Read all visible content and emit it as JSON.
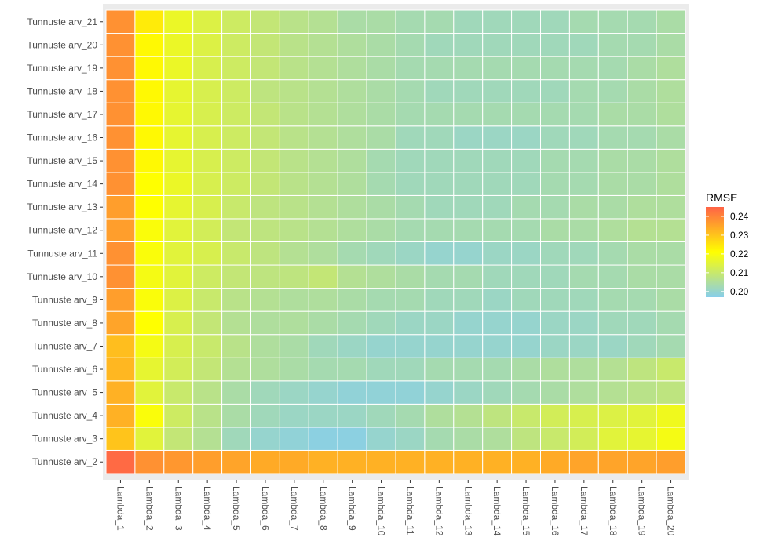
{
  "chart_data": {
    "type": "heatmap",
    "x_categories": [
      "Lambda_1",
      "Lambda_2",
      "Lambda_3",
      "Lambda_4",
      "Lambda_5",
      "Lambda_6",
      "Lambda_7",
      "Lambda_8",
      "Lambda_9",
      "Lambda_10",
      "Lambda_11",
      "Lambda_12",
      "Lambda_13",
      "Lambda_14",
      "Lambda_15",
      "Lambda_16",
      "Lambda_17",
      "Lambda_18",
      "Lambda_19",
      "Lambda_20"
    ],
    "y_categories": [
      "Tunnuste arv_2",
      "Tunnuste arv_3",
      "Tunnuste arv_4",
      "Tunnuste arv_5",
      "Tunnuste arv_6",
      "Tunnuste arv_7",
      "Tunnuste arv_8",
      "Tunnuste arv_9",
      "Tunnuste arv_10",
      "Tunnuste arv_11",
      "Tunnuste arv_12",
      "Tunnuste arv_13",
      "Tunnuste arv_14",
      "Tunnuste arv_15",
      "Tunnuste arv_16",
      "Tunnuste arv_17",
      "Tunnuste arv_18",
      "Tunnuste arv_19",
      "Tunnuste arv_20",
      "Tunnuste arv_21"
    ],
    "values": [
      [
        0.244,
        0.238,
        0.237,
        0.236,
        0.235,
        0.234,
        0.234,
        0.233,
        0.233,
        0.233,
        0.233,
        0.233,
        0.233,
        0.233,
        0.233,
        0.234,
        0.235,
        0.235,
        0.235,
        0.236
      ],
      [
        0.23,
        0.215,
        0.209,
        0.206,
        0.202,
        0.2,
        0.199,
        0.198,
        0.198,
        0.2,
        0.201,
        0.203,
        0.204,
        0.205,
        0.208,
        0.21,
        0.212,
        0.215,
        0.216,
        0.219
      ],
      [
        0.233,
        0.22,
        0.211,
        0.207,
        0.204,
        0.202,
        0.201,
        0.201,
        0.201,
        0.202,
        0.203,
        0.205,
        0.206,
        0.208,
        0.21,
        0.212,
        0.213,
        0.214,
        0.215,
        0.218
      ],
      [
        0.233,
        0.215,
        0.21,
        0.207,
        0.204,
        0.202,
        0.201,
        0.2,
        0.199,
        0.199,
        0.199,
        0.2,
        0.201,
        0.202,
        0.203,
        0.204,
        0.205,
        0.206,
        0.207,
        0.208
      ],
      [
        0.232,
        0.216,
        0.212,
        0.209,
        0.206,
        0.205,
        0.204,
        0.203,
        0.203,
        0.202,
        0.202,
        0.203,
        0.203,
        0.203,
        0.204,
        0.205,
        0.205,
        0.206,
        0.208,
        0.21
      ],
      [
        0.231,
        0.219,
        0.213,
        0.21,
        0.207,
        0.205,
        0.204,
        0.202,
        0.201,
        0.2,
        0.2,
        0.2,
        0.2,
        0.2,
        0.2,
        0.201,
        0.201,
        0.201,
        0.202,
        0.203
      ],
      [
        0.235,
        0.221,
        0.213,
        0.209,
        0.206,
        0.205,
        0.205,
        0.204,
        0.203,
        0.202,
        0.201,
        0.201,
        0.2,
        0.2,
        0.2,
        0.201,
        0.201,
        0.202,
        0.202,
        0.203
      ],
      [
        0.236,
        0.22,
        0.214,
        0.21,
        0.207,
        0.206,
        0.205,
        0.205,
        0.204,
        0.203,
        0.203,
        0.202,
        0.202,
        0.201,
        0.202,
        0.202,
        0.202,
        0.203,
        0.203,
        0.204
      ],
      [
        0.238,
        0.219,
        0.215,
        0.211,
        0.209,
        0.208,
        0.208,
        0.209,
        0.206,
        0.205,
        0.204,
        0.203,
        0.203,
        0.202,
        0.202,
        0.202,
        0.203,
        0.203,
        0.204,
        0.204
      ],
      [
        0.238,
        0.22,
        0.215,
        0.213,
        0.21,
        0.208,
        0.206,
        0.205,
        0.203,
        0.202,
        0.201,
        0.2,
        0.2,
        0.201,
        0.201,
        0.202,
        0.202,
        0.203,
        0.204,
        0.204
      ],
      [
        0.236,
        0.22,
        0.215,
        0.212,
        0.209,
        0.208,
        0.207,
        0.206,
        0.205,
        0.204,
        0.203,
        0.203,
        0.203,
        0.203,
        0.203,
        0.204,
        0.204,
        0.205,
        0.206,
        0.206
      ],
      [
        0.236,
        0.221,
        0.216,
        0.213,
        0.21,
        0.208,
        0.207,
        0.206,
        0.205,
        0.204,
        0.203,
        0.202,
        0.202,
        0.202,
        0.203,
        0.203,
        0.204,
        0.204,
        0.205,
        0.205
      ],
      [
        0.238,
        0.221,
        0.217,
        0.213,
        0.211,
        0.209,
        0.207,
        0.206,
        0.205,
        0.203,
        0.202,
        0.202,
        0.202,
        0.202,
        0.202,
        0.203,
        0.203,
        0.204,
        0.204,
        0.205
      ],
      [
        0.238,
        0.222,
        0.216,
        0.213,
        0.211,
        0.209,
        0.207,
        0.206,
        0.205,
        0.203,
        0.202,
        0.202,
        0.202,
        0.202,
        0.202,
        0.203,
        0.203,
        0.204,
        0.204,
        0.205
      ],
      [
        0.238,
        0.222,
        0.216,
        0.213,
        0.211,
        0.209,
        0.207,
        0.206,
        0.205,
        0.204,
        0.202,
        0.202,
        0.201,
        0.201,
        0.201,
        0.202,
        0.202,
        0.203,
        0.203,
        0.204
      ],
      [
        0.238,
        0.222,
        0.216,
        0.213,
        0.211,
        0.209,
        0.207,
        0.206,
        0.205,
        0.204,
        0.203,
        0.203,
        0.203,
        0.203,
        0.203,
        0.203,
        0.203,
        0.204,
        0.204,
        0.205
      ],
      [
        0.238,
        0.222,
        0.216,
        0.213,
        0.211,
        0.208,
        0.207,
        0.206,
        0.205,
        0.204,
        0.203,
        0.202,
        0.202,
        0.202,
        0.202,
        0.202,
        0.203,
        0.203,
        0.204,
        0.205
      ],
      [
        0.238,
        0.222,
        0.217,
        0.213,
        0.211,
        0.209,
        0.207,
        0.206,
        0.205,
        0.204,
        0.203,
        0.203,
        0.203,
        0.203,
        0.203,
        0.203,
        0.203,
        0.203,
        0.204,
        0.205
      ],
      [
        0.238,
        0.222,
        0.217,
        0.214,
        0.211,
        0.209,
        0.207,
        0.206,
        0.205,
        0.204,
        0.203,
        0.202,
        0.202,
        0.202,
        0.202,
        0.202,
        0.202,
        0.203,
        0.203,
        0.204
      ],
      [
        0.238,
        0.224,
        0.217,
        0.214,
        0.211,
        0.209,
        0.207,
        0.206,
        0.204,
        0.204,
        0.203,
        0.203,
        0.202,
        0.202,
        0.202,
        0.202,
        0.203,
        0.203,
        0.203,
        0.204
      ]
    ],
    "legend": {
      "title": "RMSE",
      "ticks": [
        "0.20",
        "0.21",
        "0.22",
        "0.23",
        "0.24"
      ],
      "tick_values": [
        0.2,
        0.21,
        0.22,
        0.23,
        0.24
      ],
      "range": [
        0.197,
        0.245
      ],
      "position": "right"
    },
    "color_scale": {
      "low": "#87CEEB",
      "mid": "#FFFF00",
      "high": "#FF6347",
      "mid_value": 0.221
    },
    "panel_background": "#EBEBEB",
    "tile_border": "#FFFFFF",
    "xlabel": "",
    "ylabel": "",
    "x_tick_rotation": "vertical, reading top to bottom"
  }
}
